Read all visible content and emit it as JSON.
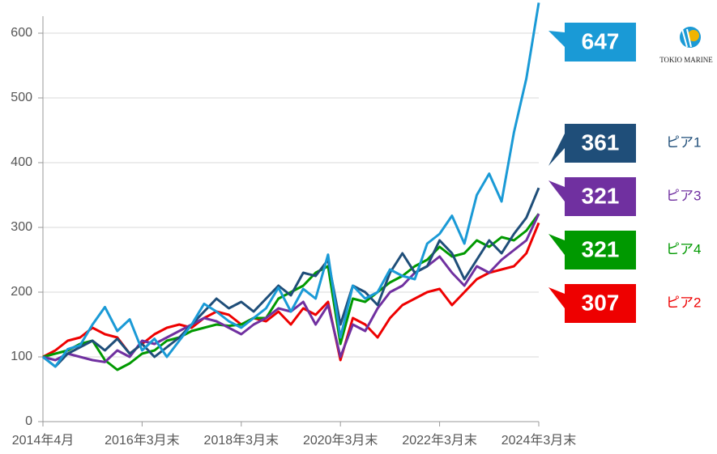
{
  "chart_data": {
    "type": "line",
    "x": [
      2014.25,
      2014.5,
      2014.75,
      2015,
      2015.25,
      2015.5,
      2015.75,
      2016,
      2016.25,
      2016.5,
      2016.75,
      2017,
      2017.25,
      2017.5,
      2017.75,
      2018,
      2018.25,
      2018.5,
      2018.75,
      2019,
      2019.25,
      2019.5,
      2019.75,
      2020,
      2020.25,
      2020.5,
      2020.75,
      2021,
      2021.25,
      2021.5,
      2021.75,
      2022,
      2022.25,
      2022.5,
      2022.75,
      2023,
      2023.25,
      2023.5,
      2023.75,
      2024,
      2024.25
    ],
    "xlim": [
      2014.25,
      2024.25
    ],
    "xticks": [
      {
        "value": 2014.25,
        "label": "2014年4月"
      },
      {
        "value": 2016.25,
        "label": "2016年3月末"
      },
      {
        "value": 2018.25,
        "label": "2018年3月末"
      },
      {
        "value": 2020.25,
        "label": "2020年3月末"
      },
      {
        "value": 2022.25,
        "label": "2022年3月末"
      },
      {
        "value": 2024.25,
        "label": "2024年3月末"
      }
    ],
    "ylim": [
      0,
      650
    ],
    "yticks": [
      0,
      100,
      200,
      300,
      400,
      500,
      600
    ],
    "grid": true,
    "series": [
      {
        "name": "TOKIO MARINE",
        "color": "#1a9ad6",
        "values": [
          100,
          85,
          112,
          118,
          150,
          177,
          140,
          158,
          110,
          128,
          100,
          125,
          150,
          182,
          170,
          155,
          145,
          160,
          175,
          207,
          170,
          205,
          190,
          258,
          130,
          210,
          190,
          200,
          235,
          225,
          220,
          275,
          290,
          318,
          275,
          350,
          383,
          340,
          447,
          530,
          647
        ]
      },
      {
        "name": "ピア1",
        "color": "#1f4e79",
        "values": [
          100,
          85,
          105,
          115,
          125,
          110,
          128,
          105,
          120,
          100,
          115,
          130,
          150,
          170,
          190,
          175,
          185,
          170,
          190,
          210,
          195,
          230,
          225,
          250,
          150,
          210,
          200,
          180,
          230,
          260,
          230,
          240,
          280,
          260,
          220,
          250,
          280,
          260,
          290,
          315,
          361
        ]
      },
      {
        "name": "ピア3",
        "color": "#7030a0",
        "values": [
          100,
          95,
          105,
          100,
          95,
          92,
          110,
          100,
          125,
          120,
          130,
          140,
          150,
          160,
          155,
          145,
          135,
          150,
          160,
          175,
          170,
          185,
          150,
          180,
          100,
          150,
          140,
          175,
          200,
          210,
          230,
          240,
          255,
          230,
          210,
          240,
          230,
          250,
          265,
          280,
          321
        ]
      },
      {
        "name": "ピア4",
        "color": "#009900",
        "values": [
          100,
          105,
          110,
          120,
          125,
          95,
          80,
          90,
          105,
          110,
          125,
          130,
          140,
          145,
          150,
          148,
          150,
          160,
          160,
          190,
          200,
          210,
          230,
          240,
          120,
          190,
          185,
          200,
          215,
          225,
          240,
          250,
          270,
          255,
          260,
          280,
          270,
          285,
          280,
          295,
          321
        ]
      },
      {
        "name": "ピア2",
        "color": "#ee0000",
        "values": [
          100,
          110,
          125,
          130,
          145,
          135,
          130,
          105,
          120,
          135,
          145,
          150,
          145,
          160,
          170,
          165,
          150,
          160,
          155,
          170,
          150,
          175,
          165,
          185,
          95,
          160,
          150,
          130,
          160,
          180,
          190,
          200,
          205,
          180,
          200,
          220,
          230,
          235,
          240,
          260,
          307
        ]
      }
    ]
  }
}
